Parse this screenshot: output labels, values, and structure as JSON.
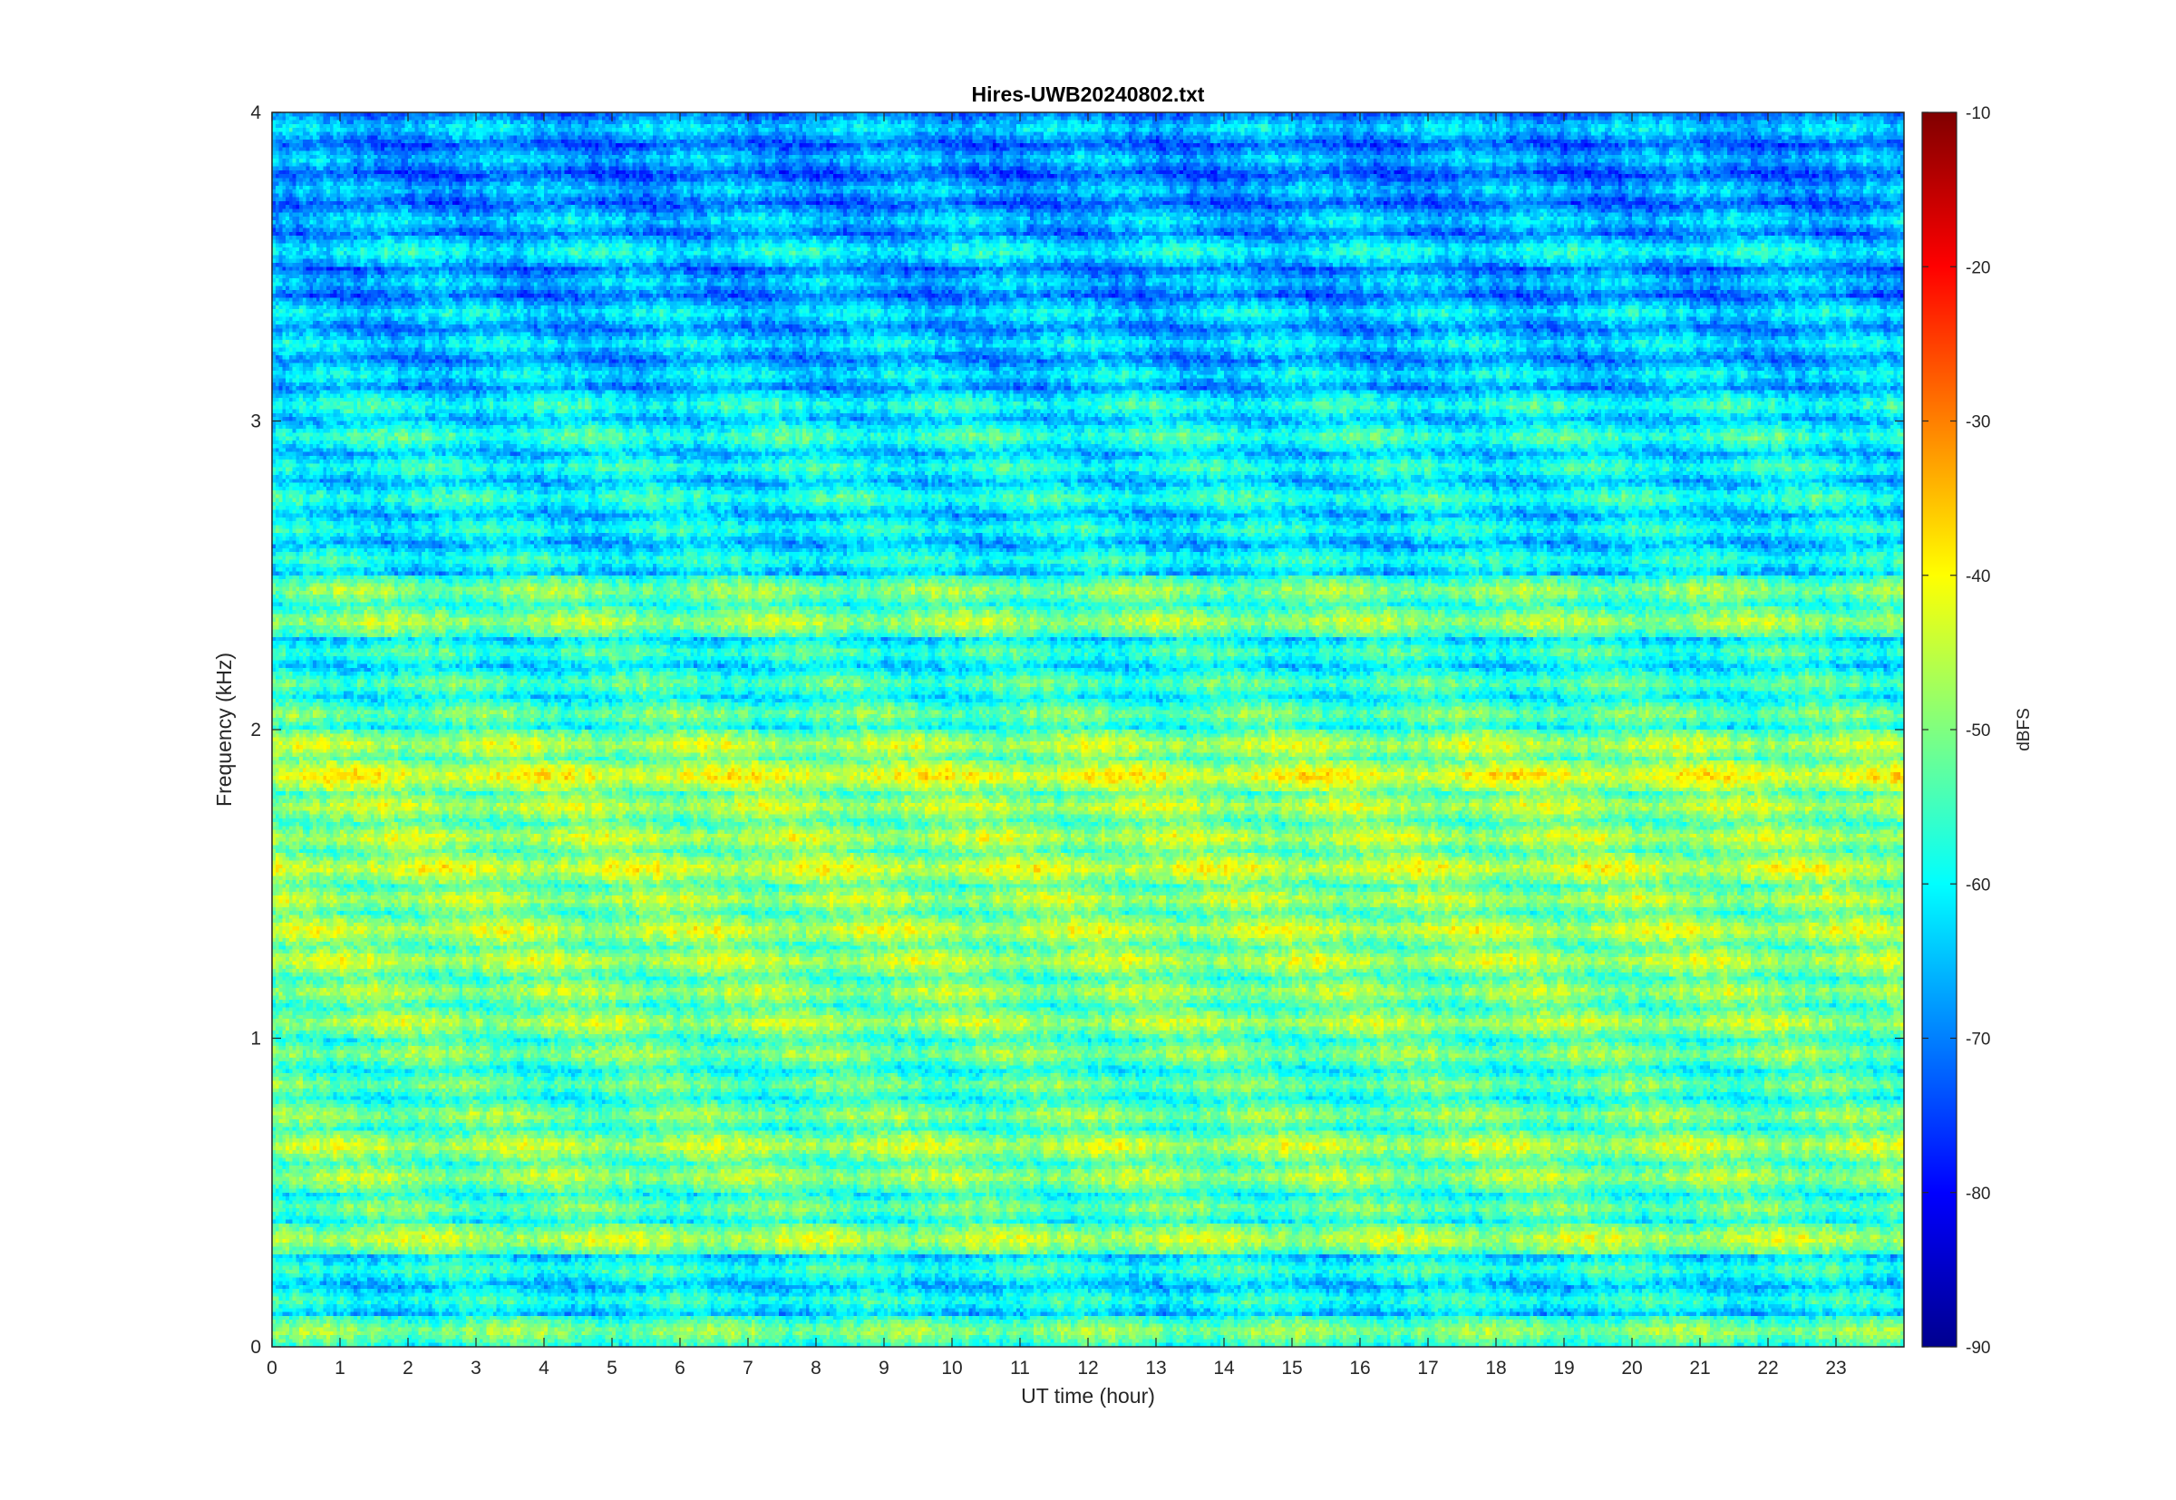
{
  "chart_data": {
    "type": "heatmap",
    "title": "Hires-UWB20240802.txt",
    "xlabel": "UT time (hour)",
    "ylabel": "Frequency (kHz)",
    "xlim": [
      0,
      24
    ],
    "ylim": [
      0,
      4
    ],
    "x_ticks": [
      "0",
      "1",
      "2",
      "3",
      "4",
      "5",
      "6",
      "7",
      "8",
      "9",
      "10",
      "11",
      "12",
      "13",
      "14",
      "15",
      "16",
      "17",
      "18",
      "19",
      "20",
      "21",
      "22",
      "23"
    ],
    "y_ticks": [
      "0",
      "1",
      "2",
      "3",
      "4"
    ],
    "colorbar": {
      "label": "dBFS",
      "range": [
        -90,
        -10
      ],
      "ticks": [
        "-90",
        "-80",
        "-70",
        "-60",
        "-50",
        "-40",
        "-30",
        "-20",
        "-10"
      ],
      "colormap": "jet"
    },
    "frequency_bands_khz": [
      0.05,
      0.15,
      0.25,
      0.35,
      0.45,
      0.55,
      0.65,
      0.75,
      0.85,
      0.95,
      1.05,
      1.15,
      1.25,
      1.35,
      1.45,
      1.55,
      1.65,
      1.75,
      1.85,
      1.95,
      2.05,
      2.15,
      2.25,
      2.35,
      2.45,
      2.55,
      2.65,
      2.75,
      2.85,
      2.95,
      3.05,
      3.15,
      3.25,
      3.35,
      3.45,
      3.55,
      3.65,
      3.75,
      3.85,
      3.95
    ],
    "band_levels_dbfs": [
      -48,
      -56,
      -55,
      -44,
      -50,
      -46,
      -44,
      -48,
      -50,
      -48,
      -45,
      -46,
      -44,
      -43,
      -45,
      -42,
      -44,
      -44,
      -40,
      -44,
      -50,
      -52,
      -54,
      -46,
      -48,
      -56,
      -57,
      -55,
      -56,
      -54,
      -56,
      -60,
      -60,
      -60,
      -63,
      -58,
      -62,
      -64,
      -64,
      -62
    ]
  }
}
